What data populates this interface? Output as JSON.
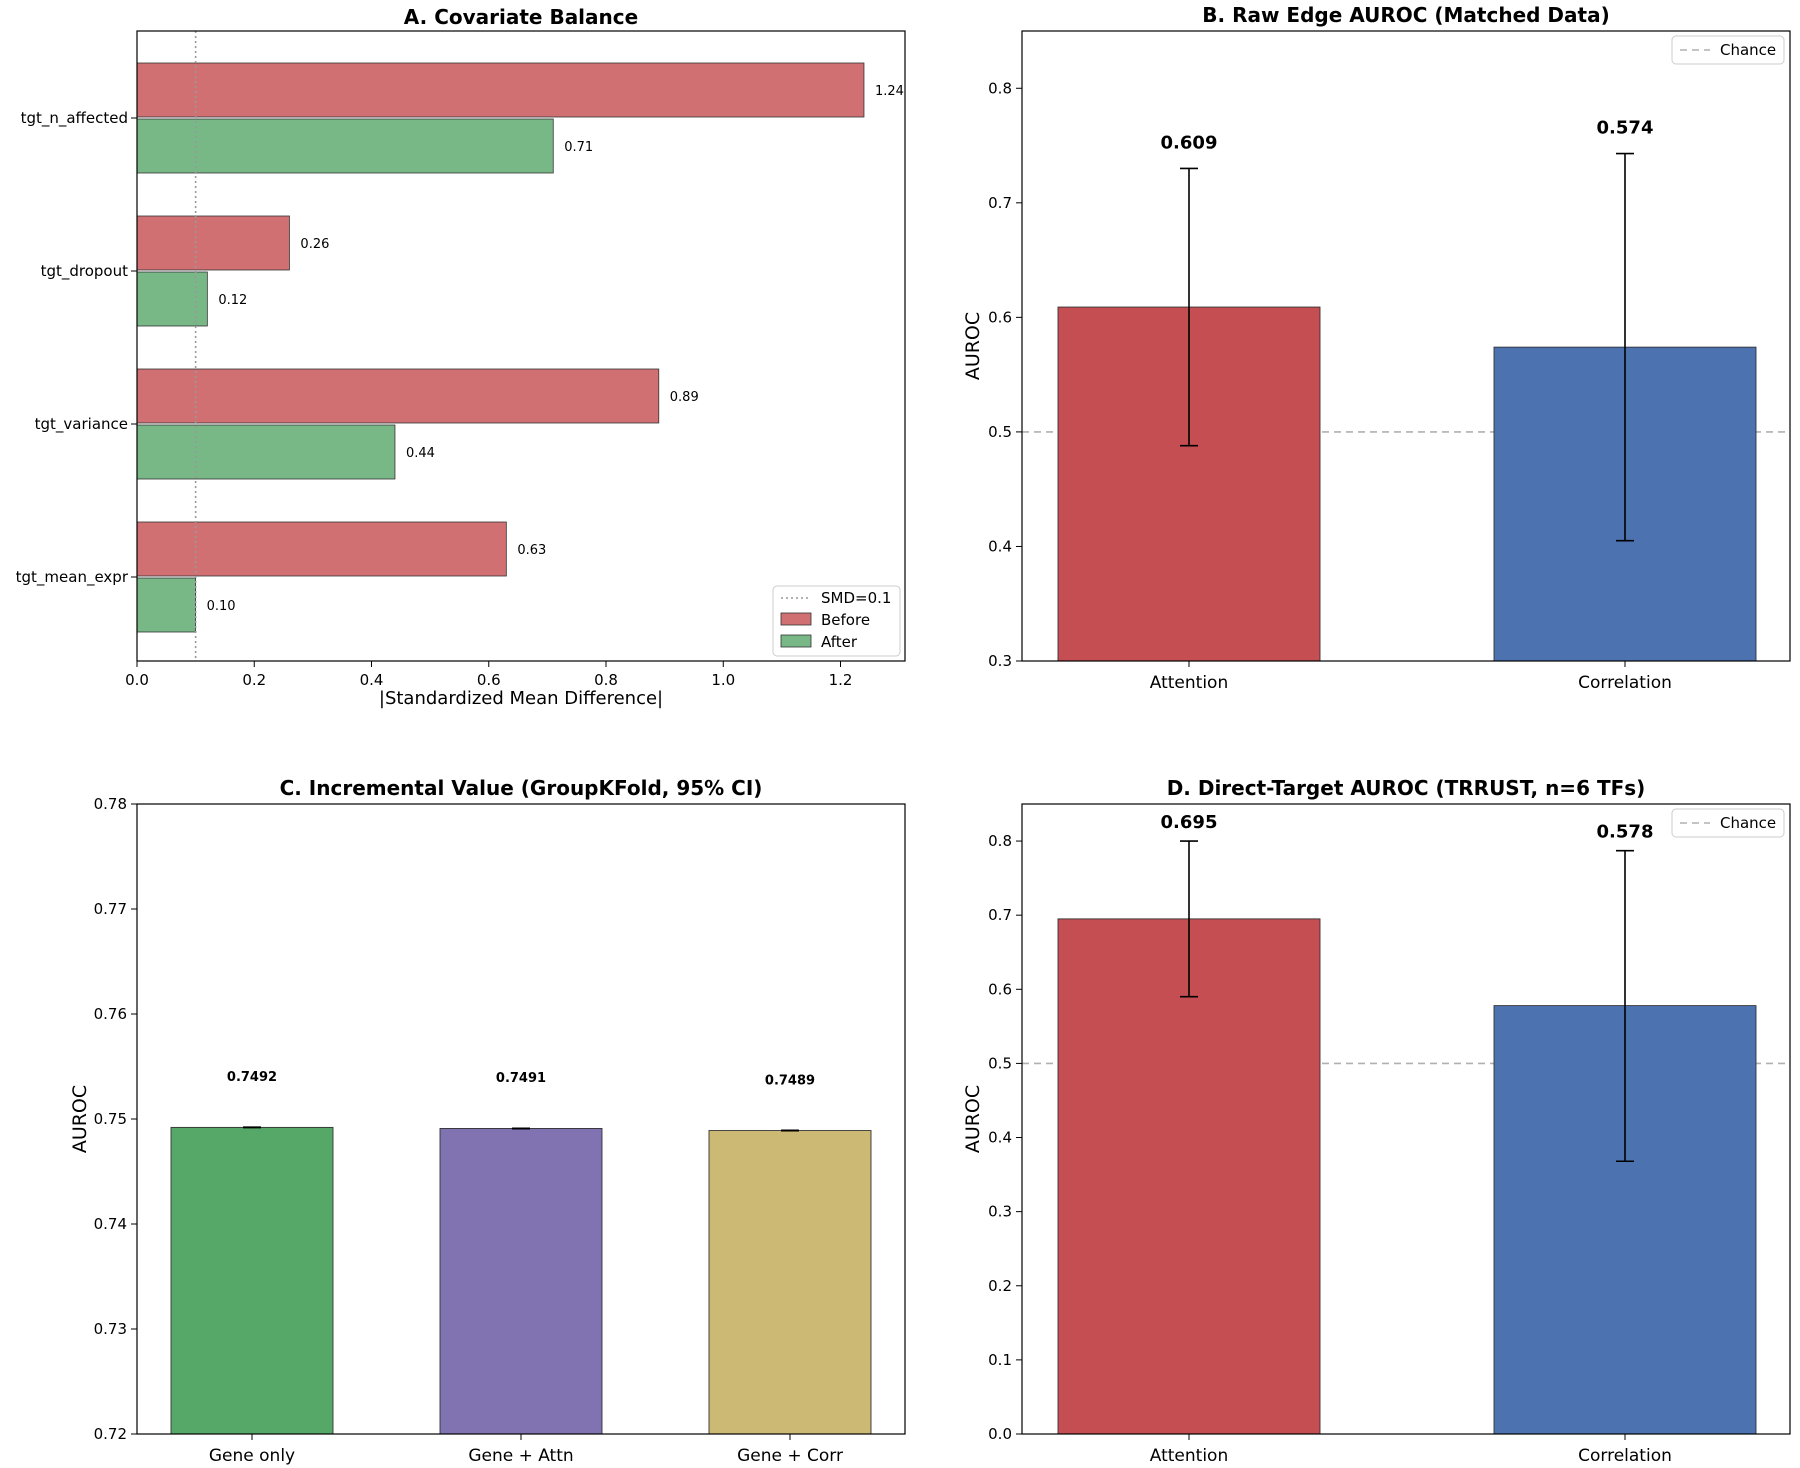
{
  "colors": {
    "before": "#d07073",
    "after": "#78b887",
    "attention": "#c44e52",
    "correlation": "#4c72b0",
    "gene_only": "#55a868",
    "gene_attn": "#8172b2",
    "gene_corr": "#ccb974",
    "chance": "#b0b0b0",
    "smd_line": "#999999"
  },
  "chart_data": [
    {
      "id": "A",
      "type": "bar",
      "orientation": "horizontal",
      "title": "A. Covariate Balance",
      "xlabel": "|Standardized Mean Difference|",
      "ylabel": "",
      "xlim": [
        0,
        1.31
      ],
      "xticks": [
        0.0,
        0.2,
        0.4,
        0.6,
        0.8,
        1.0,
        1.2
      ],
      "xtick_labels": [
        "0.0",
        "0.2",
        "0.4",
        "0.6",
        "0.8",
        "1.0",
        "1.2"
      ],
      "categories": [
        "tgt_n_affected",
        "tgt_dropout",
        "tgt_variance",
        "tgt_mean_expr"
      ],
      "series": [
        {
          "name": "Before",
          "values": [
            1.24,
            0.26,
            0.89,
            0.63
          ],
          "labels": [
            "1.24",
            "0.26",
            "0.89",
            "0.63"
          ]
        },
        {
          "name": "After",
          "values": [
            0.71,
            0.12,
            0.44,
            0.1
          ],
          "labels": [
            "0.71",
            "0.12",
            "0.44",
            "0.10"
          ]
        }
      ],
      "reference_line": {
        "value": 0.1,
        "label": "SMD=0.1",
        "style": "dotted"
      },
      "legend": [
        "SMD=0.1",
        "Before",
        "After"
      ],
      "legend_position": "lower-right"
    },
    {
      "id": "B",
      "type": "bar",
      "title": "B. Raw Edge AUROC (Matched Data)",
      "xlabel": "",
      "ylabel": "AUROC",
      "ylim": [
        0.3,
        0.85
      ],
      "yticks": [
        0.3,
        0.4,
        0.5,
        0.6,
        0.7,
        0.8
      ],
      "ytick_labels": [
        "0.3",
        "0.4",
        "0.5",
        "0.6",
        "0.7",
        "0.8"
      ],
      "categories": [
        "Attention",
        "Correlation"
      ],
      "values": [
        0.609,
        0.574
      ],
      "labels": [
        "0.609",
        "0.574"
      ],
      "error_low": [
        0.488,
        0.405
      ],
      "error_high": [
        0.73,
        0.743
      ],
      "reference_line": {
        "value": 0.5,
        "label": "Chance",
        "style": "dashed"
      },
      "legend": [
        "Chance"
      ],
      "legend_position": "upper-right"
    },
    {
      "id": "C",
      "type": "bar",
      "title": "C. Incremental Value (GroupKFold, 95% CI)",
      "xlabel": "",
      "ylabel": "AUROC",
      "ylim": [
        0.72,
        0.78
      ],
      "yticks": [
        0.72,
        0.73,
        0.74,
        0.75,
        0.76,
        0.77,
        0.78
      ],
      "ytick_labels": [
        "0.72",
        "0.73",
        "0.74",
        "0.75",
        "0.76",
        "0.77",
        "0.78"
      ],
      "categories": [
        "Gene only",
        "Gene + Attn",
        "Gene + Corr"
      ],
      "values": [
        0.7492,
        0.7491,
        0.7489
      ],
      "labels": [
        "0.7492",
        "0.7491",
        "0.7489"
      ],
      "error_low": [
        0.74918,
        0.74908,
        0.74888
      ],
      "error_high": [
        0.74922,
        0.74912,
        0.74892
      ]
    },
    {
      "id": "D",
      "type": "bar",
      "title": "D. Direct-Target AUROC (TRRUST, n=6 TFs)",
      "xlabel": "",
      "ylabel": "AUROC",
      "ylim": [
        0.0,
        0.85
      ],
      "yticks": [
        0.0,
        0.1,
        0.2,
        0.3,
        0.4,
        0.5,
        0.6,
        0.7,
        0.8
      ],
      "ytick_labels": [
        "0.0",
        "0.1",
        "0.2",
        "0.3",
        "0.4",
        "0.5",
        "0.6",
        "0.7",
        "0.8"
      ],
      "categories": [
        "Attention",
        "Correlation"
      ],
      "values": [
        0.695,
        0.578
      ],
      "labels": [
        "0.695",
        "0.578"
      ],
      "error_low": [
        0.59,
        0.368
      ],
      "error_high": [
        0.8,
        0.787
      ],
      "reference_line": {
        "value": 0.5,
        "label": "Chance",
        "style": "dashed"
      },
      "legend": [
        "Chance"
      ],
      "legend_position": "upper-right"
    }
  ]
}
